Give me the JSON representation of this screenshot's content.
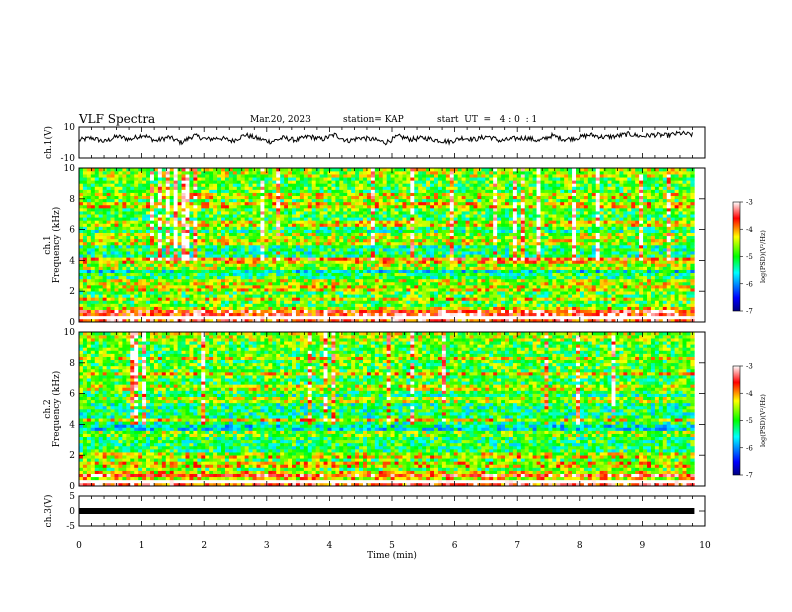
{
  "header": {
    "title": "VLF Spectra",
    "date": "Mar.20, 2023",
    "station": "station= KAP",
    "start": "start  UT  =   4 : 0  : 1"
  },
  "chart_data": [
    {
      "type": "line",
      "panel": "ch1-waveform",
      "ylabel": "ch.1(V)",
      "ylim": [
        -10,
        10
      ],
      "yticks": [
        "10",
        "-10"
      ],
      "x_range_min": [
        0,
        9.8
      ],
      "description_of_series": "noisy trace oscillating around ~2 V",
      "series": [
        {
          "values_sampled_V": [
            1.5,
            3,
            0.5,
            4,
            2,
            5,
            1,
            3.5,
            0,
            4.5,
            2,
            3,
            1,
            5,
            2.5,
            0.5,
            3,
            1.5,
            4,
            2,
            5,
            1,
            3,
            2,
            0,
            4,
            2,
            3,
            1.5,
            0.5,
            3,
            2,
            4,
            1,
            2.5,
            3,
            1,
            4.5,
            2,
            3,
            5,
            3.5,
            4,
            5.5,
            4,
            5,
            4.5,
            6,
            5
          ]
        }
      ]
    },
    {
      "type": "heatmap",
      "panel": "ch1-spectrogram",
      "ylabel": "ch.1 Frequency (kHz)",
      "ylim": [
        0,
        10
      ],
      "yticks": [
        "0",
        "2",
        "4",
        "6",
        "8",
        "10"
      ],
      "colorbar": {
        "label": "log(PSD)(V²/Hz)",
        "range": [
          -7,
          -3
        ],
        "ticks": [
          "-3",
          "-4",
          "-5",
          "-6",
          "-7"
        ]
      }
    },
    {
      "type": "heatmap",
      "panel": "ch2-spectrogram",
      "ylabel": "ch.2 Frequency (kHz)",
      "ylim": [
        0,
        10
      ],
      "yticks": [
        "0",
        "2",
        "4",
        "6",
        "8",
        "10"
      ],
      "colorbar": {
        "label": "log(PSD)(V²/Hz)",
        "range": [
          -7,
          -3
        ],
        "ticks": [
          "-3",
          "-4",
          "-5",
          "-6",
          "-7"
        ]
      }
    },
    {
      "type": "line",
      "panel": "ch3-waveform",
      "ylabel": "ch.3(V)",
      "ylim": [
        -5,
        5
      ],
      "yticks": [
        "5",
        "0",
        "-5"
      ],
      "series": [
        {
          "x": [
            0,
            9.8
          ],
          "values_V": [
            0,
            0
          ]
        }
      ]
    }
  ],
  "xaxis": {
    "label": "Time  (min)",
    "ticks": [
      "0",
      "1",
      "2",
      "3",
      "4",
      "5",
      "6",
      "7",
      "8",
      "9",
      "10"
    ],
    "xlim": [
      0,
      10
    ]
  }
}
